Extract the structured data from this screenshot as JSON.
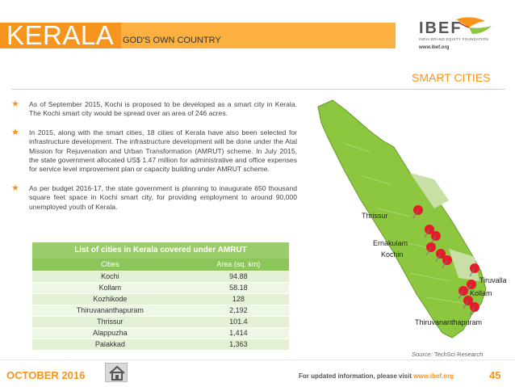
{
  "header": {
    "title": "KERALA",
    "subtitle": "GOD'S OWN COUNTRY",
    "logo_text": "IBEF",
    "logo_foundation": "INDIA BRAND EQUITY FOUNDATION",
    "logo_url": "www.ibef.org"
  },
  "section_title": "SMART CITIES",
  "bullets": [
    "As of September 2015, Kochi is proposed to be developed as a smart city in Kerala. The Kochi smart city would be spread over an area of 246 acres.",
    "In 2015, along with the smart cities, 18 cities of Kerala have also been selected for infrastructure development. The infrastructure development will be done under the Atal Mission for Rejuvenation and Urban Transformation (AMRUT) scheme. In July 2015, the state government allocated US$ 1.47 million for administrative and office expenses for service level improvement plan or capacity building under AMRUT scheme.",
    "As per budget 2016-17, the state government is planning to inaugurate 650 thousand square feet space in Kochi smart city, for providing employment to around 90,000 unemployed youth of Kerala."
  ],
  "table": {
    "title": "List of cities in Kerala covered under AMRUT",
    "headers": [
      "Cities",
      "Area (sq. km)"
    ],
    "rows": [
      [
        "Kochi",
        "94.88"
      ],
      [
        "Kollam",
        "58.18"
      ],
      [
        "Kozhikode",
        "128"
      ],
      [
        "Thiruvananthapuram",
        "2,192"
      ],
      [
        "Thrissur",
        "101.4"
      ],
      [
        "Alappuzha",
        "1,414"
      ],
      [
        "Palakkad",
        "1,363"
      ]
    ]
  },
  "map": {
    "labels": {
      "thrissur": "Thrissur",
      "ernakulam": "Ernakulam",
      "kochin": "Kochin",
      "tiruvalla": "Tiruvalla",
      "kollam": "Kollam",
      "thiruvananthapuram": "Thiruvananthapuram"
    },
    "land_color": "#8dc63f",
    "pin_color": "#e31d2b"
  },
  "source": {
    "label": "Source:",
    "value": "TechSci Research"
  },
  "footer": {
    "date": "OCTOBER 2016",
    "info_prefix": "For updated information, please visit",
    "info_url": "www.ibef.org",
    "page": "45"
  }
}
